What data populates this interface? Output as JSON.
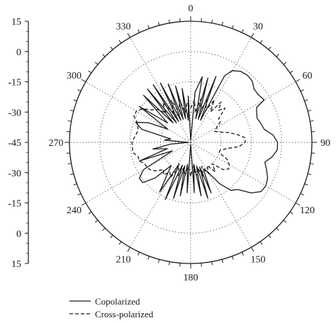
{
  "chart_data": {
    "type": "polar-line",
    "angle_unit": "degrees",
    "angle_zero": "top",
    "angle_direction": "clockwise",
    "angle_tick_labels": [
      "0",
      "30",
      "60",
      "90",
      "120",
      "150",
      "180",
      "210",
      "240",
      "270",
      "300",
      "330"
    ],
    "radial_tick_labels_upper": [
      "15",
      "0",
      "-15",
      "-30",
      "-45"
    ],
    "radial_tick_labels_lower": [
      "-30",
      "-15",
      "0",
      "15"
    ],
    "radial_range": [
      -45,
      15
    ],
    "grid": true,
    "legend_position": "bottom-left",
    "series": [
      {
        "name": "Copolarized",
        "line_style": "solid",
        "points": [
          [
            0,
            -44
          ],
          [
            5,
            -20
          ],
          [
            10,
            -12
          ],
          [
            12,
            -33
          ],
          [
            15,
            -12
          ],
          [
            18,
            -33
          ],
          [
            21,
            -10
          ],
          [
            24,
            -33
          ],
          [
            27,
            -8
          ],
          [
            30,
            -4
          ],
          [
            35,
            -2
          ],
          [
            40,
            -1.5
          ],
          [
            45,
            -2
          ],
          [
            50,
            -4
          ],
          [
            55,
            -4
          ],
          [
            60,
            -3
          ],
          [
            62,
            -8
          ],
          [
            65,
            -9
          ],
          [
            70,
            -10
          ],
          [
            75,
            -9
          ],
          [
            80,
            -8
          ],
          [
            85,
            -4
          ],
          [
            90,
            -2
          ],
          [
            95,
            -2
          ],
          [
            100,
            -4
          ],
          [
            105,
            -7
          ],
          [
            110,
            -5
          ],
          [
            115,
            -3
          ],
          [
            120,
            -2
          ],
          [
            125,
            -2.5
          ],
          [
            130,
            -6
          ],
          [
            135,
            -12
          ],
          [
            140,
            -14
          ],
          [
            145,
            -20
          ],
          [
            150,
            -28
          ],
          [
            155,
            -30
          ],
          [
            158,
            -18
          ],
          [
            160,
            -32
          ],
          [
            163,
            -16
          ],
          [
            166,
            -33
          ],
          [
            169,
            -18
          ],
          [
            172,
            -34
          ],
          [
            176,
            -20
          ],
          [
            180,
            -44
          ],
          [
            184,
            -20
          ],
          [
            188,
            -34
          ],
          [
            191,
            -18
          ],
          [
            194,
            -33
          ],
          [
            197,
            -16
          ],
          [
            200,
            -33
          ],
          [
            204,
            -14
          ],
          [
            208,
            -33
          ],
          [
            212,
            -16
          ],
          [
            216,
            -25
          ],
          [
            220,
            -30
          ],
          [
            225,
            -20
          ],
          [
            230,
            -14
          ],
          [
            235,
            -14
          ],
          [
            240,
            -18
          ],
          [
            245,
            -35
          ],
          [
            250,
            -18
          ],
          [
            255,
            -33
          ],
          [
            260,
            -26
          ],
          [
            265,
            -35
          ],
          [
            270,
            -44
          ],
          [
            275,
            -32
          ],
          [
            280,
            -35
          ],
          [
            285,
            -20
          ],
          [
            290,
            -16
          ],
          [
            295,
            -22
          ],
          [
            300,
            -32
          ],
          [
            305,
            -14
          ],
          [
            310,
            -30
          ],
          [
            315,
            -12
          ],
          [
            318,
            -32
          ],
          [
            321,
            -11
          ],
          [
            324,
            -33
          ],
          [
            327,
            -11
          ],
          [
            330,
            -33
          ],
          [
            333,
            -12
          ],
          [
            336,
            -33
          ],
          [
            339,
            -14
          ],
          [
            342,
            -33
          ],
          [
            345,
            -16
          ],
          [
            348,
            -33
          ],
          [
            351,
            -18
          ],
          [
            354,
            -34
          ],
          [
            357,
            -22
          ],
          [
            360,
            -44
          ]
        ]
      },
      {
        "name": "Cross-polarized",
        "line_style": "dashed",
        "points": [
          [
            0,
            -28
          ],
          [
            5,
            -24
          ],
          [
            9,
            -30
          ],
          [
            13,
            -23
          ],
          [
            17,
            -29
          ],
          [
            21,
            -22
          ],
          [
            25,
            -28
          ],
          [
            29,
            -21
          ],
          [
            33,
            -27
          ],
          [
            37,
            -20
          ],
          [
            41,
            -24
          ],
          [
            45,
            -21
          ],
          [
            50,
            -27
          ],
          [
            55,
            -27
          ],
          [
            60,
            -30
          ],
          [
            65,
            -32
          ],
          [
            70,
            -30
          ],
          [
            75,
            -26
          ],
          [
            80,
            -22
          ],
          [
            85,
            -18
          ],
          [
            90,
            -18
          ],
          [
            95,
            -21
          ],
          [
            100,
            -27
          ],
          [
            105,
            -30
          ],
          [
            110,
            -30
          ],
          [
            115,
            -25
          ],
          [
            120,
            -23
          ],
          [
            125,
            -22
          ],
          [
            130,
            -24
          ],
          [
            135,
            -30
          ],
          [
            140,
            -26
          ],
          [
            145,
            -31
          ],
          [
            150,
            -27
          ],
          [
            155,
            -32
          ],
          [
            160,
            -27
          ],
          [
            165,
            -32
          ],
          [
            170,
            -28
          ],
          [
            175,
            -33
          ],
          [
            180,
            -28
          ],
          [
            185,
            -33
          ],
          [
            190,
            -28
          ],
          [
            195,
            -32
          ],
          [
            200,
            -27
          ],
          [
            205,
            -31
          ],
          [
            210,
            -25
          ],
          [
            215,
            -27
          ],
          [
            220,
            -24
          ],
          [
            225,
            -26
          ],
          [
            230,
            -23
          ],
          [
            235,
            -21
          ],
          [
            240,
            -20
          ],
          [
            245,
            -20
          ],
          [
            250,
            -18
          ],
          [
            255,
            -18
          ],
          [
            260,
            -16
          ],
          [
            265,
            -16
          ],
          [
            270,
            -16
          ],
          [
            275,
            -17
          ],
          [
            280,
            -18
          ],
          [
            285,
            -18
          ],
          [
            290,
            -17
          ],
          [
            295,
            -14
          ],
          [
            300,
            -14
          ],
          [
            305,
            -16
          ],
          [
            310,
            -20
          ],
          [
            315,
            -22
          ],
          [
            320,
            -26
          ],
          [
            325,
            -21
          ],
          [
            330,
            -28
          ],
          [
            335,
            -22
          ],
          [
            340,
            -29
          ],
          [
            345,
            -23
          ],
          [
            350,
            -30
          ],
          [
            355,
            -25
          ],
          [
            360,
            -28
          ]
        ]
      }
    ]
  }
}
